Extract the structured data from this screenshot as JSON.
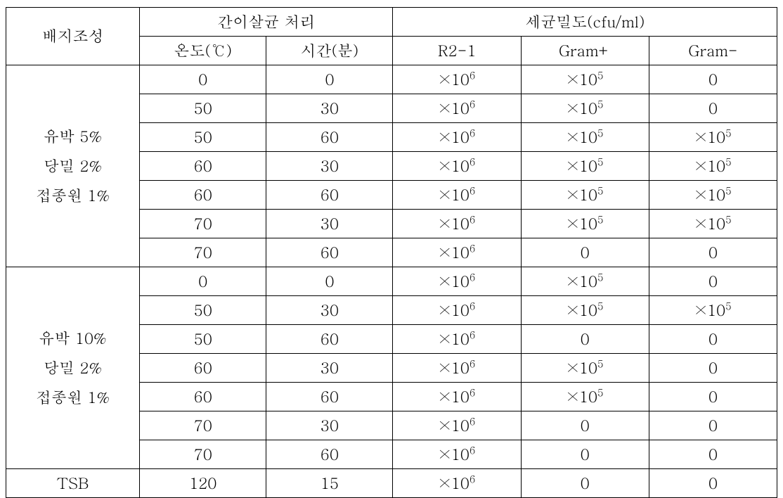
{
  "headers": {
    "composition": "배지조성",
    "steril_group": "간이살균 처리",
    "density_group": "세균밀도(cfu/ml)",
    "temp": "온도(℃)",
    "time": "시간(분)",
    "r21": "R2-1",
    "gramp": "Gram+",
    "gramm": "Gram-"
  },
  "group1": {
    "label": "유박 5%<br>당밀 2%<br>접종원 1%",
    "rows": [
      {
        "temp": "0",
        "time": "0",
        "r21": "×10<sup>6</sup>",
        "gp": "×10<sup>5</sup>",
        "gm": "0"
      },
      {
        "temp": "50",
        "time": "30",
        "r21": "×10<sup>6</sup>",
        "gp": "×10<sup>5</sup>",
        "gm": "0"
      },
      {
        "temp": "50",
        "time": "60",
        "r21": "×10<sup>6</sup>",
        "gp": "×10<sup>5</sup>",
        "gm": "×10<sup>5</sup>"
      },
      {
        "temp": "60",
        "time": "30",
        "r21": "×10<sup>6</sup>",
        "gp": "×10<sup>5</sup>",
        "gm": "×10<sup>5</sup>"
      },
      {
        "temp": "60",
        "time": "60",
        "r21": "×10<sup>6</sup>",
        "gp": "×10<sup>5</sup>",
        "gm": "×10<sup>5</sup>"
      },
      {
        "temp": "70",
        "time": "30",
        "r21": "×10<sup>6</sup>",
        "gp": "×10<sup>5</sup>",
        "gm": "×10<sup>5</sup>"
      },
      {
        "temp": "70",
        "time": "60",
        "r21": "×10<sup>6</sup>",
        "gp": "0",
        "gm": "0"
      }
    ]
  },
  "group2": {
    "label": "유박 10%<br>당밀 2%<br>접종원 1%",
    "rows": [
      {
        "temp": "0",
        "time": "0",
        "r21": "×10<sup>6</sup>",
        "gp": "×10<sup>5</sup>",
        "gm": "0"
      },
      {
        "temp": "50",
        "time": "30",
        "r21": "×10<sup>6</sup>",
        "gp": "×10<sup>5</sup>",
        "gm": "×10<sup>5</sup>"
      },
      {
        "temp": "50",
        "time": "60",
        "r21": "×10<sup>6</sup>",
        "gp": "0",
        "gm": "0"
      },
      {
        "temp": "60",
        "time": "30",
        "r21": "×10<sup>6</sup>",
        "gp": "×10<sup>5</sup>",
        "gm": "0"
      },
      {
        "temp": "60",
        "time": "60",
        "r21": "×10<sup>6</sup>",
        "gp": "×10<sup>5</sup>",
        "gm": "0"
      },
      {
        "temp": "70",
        "time": "30",
        "r21": "×10<sup>6</sup>",
        "gp": "0",
        "gm": "0"
      },
      {
        "temp": "70",
        "time": "60",
        "r21": "×10<sup>6</sup>",
        "gp": "0",
        "gm": "0"
      }
    ]
  },
  "tsb": {
    "label": "TSB",
    "temp": "120",
    "time": "15",
    "r21": "×10<sup>6</sup>",
    "gp": "0",
    "gm": "0"
  }
}
